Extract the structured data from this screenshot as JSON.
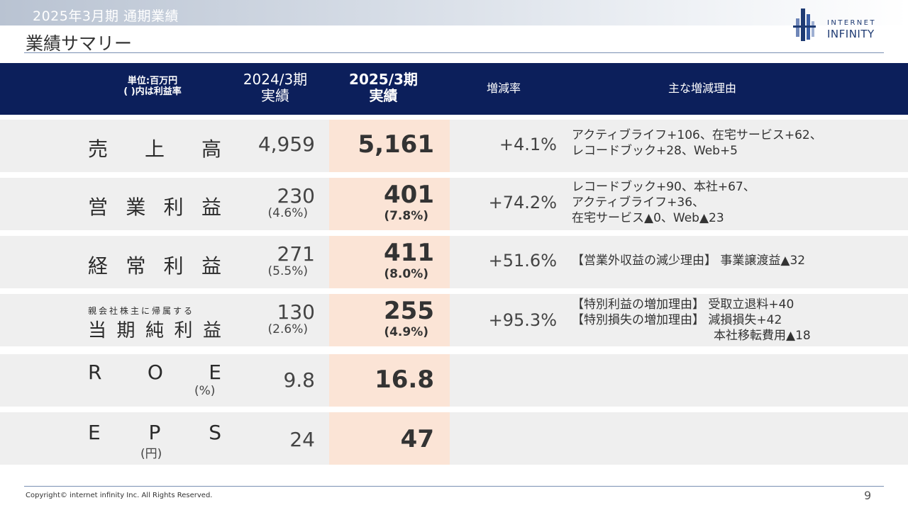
{
  "header": {
    "subtitle": "2025年3月期 通期業績",
    "title": "業績サマリー"
  },
  "logo": {
    "line1": "INTERNET",
    "line2": "INFINITY",
    "icon": "building-bars-logo"
  },
  "table": {
    "headers": {
      "unit_line1": "単位:百万円",
      "unit_line2": "( )内は利益率",
      "prev_period": "2024/3期",
      "prev_label": "実績",
      "curr_period": "2025/3期",
      "curr_label": "実績",
      "rate": "増減率",
      "reason": "主な増減理由"
    },
    "rows": [
      {
        "label_chars": [
          "売",
          "上",
          "高"
        ],
        "prev": "4,959",
        "curr": "5,161",
        "rate": "+4.1%",
        "reason_lines": [
          "アクティブライフ+106、在宅サービス+62、",
          "レコードブック+28、Web+5"
        ]
      },
      {
        "label_chars": [
          "営",
          "業",
          "利",
          "益"
        ],
        "prev": "230",
        "prev_margin": "(4.6%)",
        "curr": "401",
        "curr_margin": "(7.8%)",
        "rate": "+74.2%",
        "reason_lines": [
          "レコードブック+90、本社+67、",
          "アクティブライフ+36、",
          "在宅サービス▲0、Web▲23"
        ]
      },
      {
        "label_chars": [
          "経",
          "常",
          "利",
          "益"
        ],
        "prev": "271",
        "prev_margin": "(5.5%)",
        "curr": "411",
        "curr_margin": "(8.0%)",
        "rate": "+51.6%",
        "reason_lines": [
          "【営業外収益の減少理由】 事業譲渡益▲32"
        ]
      },
      {
        "label_small": "親会社株主に帰属する",
        "label_chars": [
          "当",
          "期",
          "純",
          "利",
          "益"
        ],
        "prev": "130",
        "prev_margin": "(2.6%)",
        "curr": "255",
        "curr_margin": "(4.9%)",
        "rate": "+95.3%",
        "reason_lines": [
          "【特別利益の増加理由】 受取立退料+40",
          "【特別損失の増加理由】 減損損失+42",
          "本社移転費用▲18"
        ]
      },
      {
        "label_chars": [
          "R",
          "O",
          "E"
        ],
        "label_unit": "(%)",
        "prev": "9.8",
        "curr": "16.8"
      },
      {
        "label_chars": [
          "E",
          "P",
          "S"
        ],
        "label_unit": "(円)",
        "prev": "24",
        "curr": "47"
      }
    ]
  },
  "footer": {
    "copyright": "Copyright© internet infinity Inc. All Rights Reserved.",
    "page": "9"
  },
  "colors": {
    "header_band": "#0c1f5b",
    "row_bg": "#efefef",
    "highlight": "#fbe4d6",
    "rule": "#7a8fb3"
  }
}
